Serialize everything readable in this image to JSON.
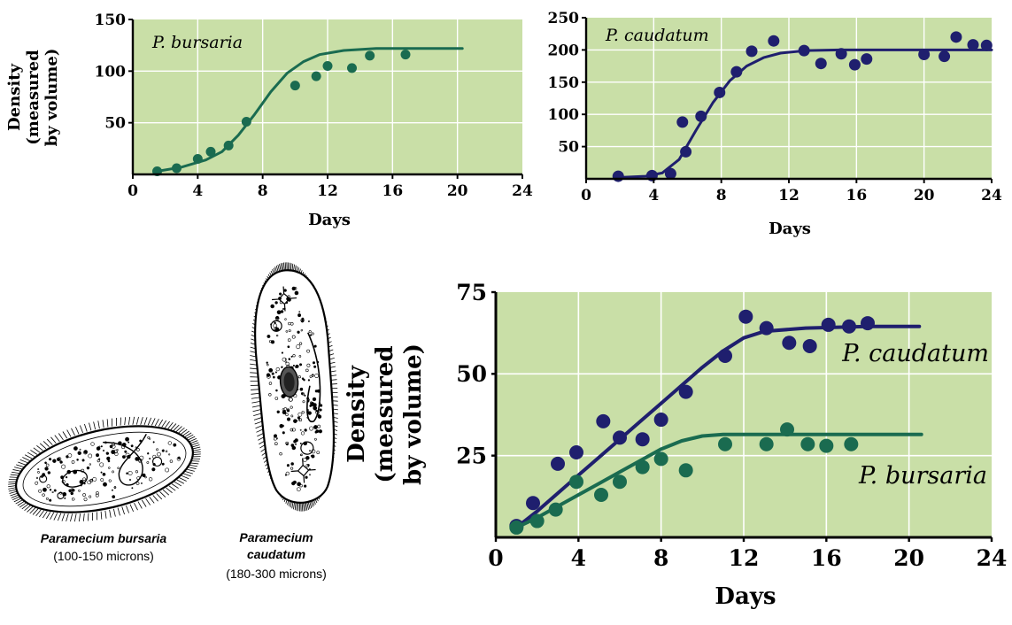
{
  "chart_data": [
    {
      "type": "scatter",
      "series_label": "P. bursaria",
      "xlabel": "Days",
      "ylabel": [
        "Density",
        "(measured",
        "by volume)"
      ],
      "xlim": [
        0,
        24
      ],
      "ylim": [
        0,
        150
      ],
      "xticks": [
        0,
        4,
        8,
        12,
        16,
        20,
        24
      ],
      "yticks": [
        50,
        100,
        150
      ],
      "grid": true,
      "series": [
        {
          "name": "P. bursaria",
          "color": "#1a6b50",
          "points": [
            [
              1.5,
              3
            ],
            [
              2.7,
              6
            ],
            [
              4,
              15
            ],
            [
              4.8,
              22
            ],
            [
              5.9,
              28
            ],
            [
              7,
              51
            ],
            [
              10,
              86
            ],
            [
              11.3,
              95
            ],
            [
              12,
              105
            ],
            [
              13.5,
              103
            ],
            [
              14.6,
              115
            ],
            [
              16.8,
              116
            ]
          ],
          "fit": [
            [
              1.5,
              3
            ],
            [
              3,
              7
            ],
            [
              4.5,
              14
            ],
            [
              5.5,
              22
            ],
            [
              6.5,
              38
            ],
            [
              7.5,
              58
            ],
            [
              8.5,
              80
            ],
            [
              9.5,
              98
            ],
            [
              10.5,
              109
            ],
            [
              11.5,
              116
            ],
            [
              13,
              120
            ],
            [
              15,
              122
            ],
            [
              17,
              122
            ],
            [
              20.3,
              122
            ]
          ]
        }
      ]
    },
    {
      "type": "scatter",
      "series_label": "P. caudatum",
      "xlabel": "Days",
      "ylabel": [],
      "xlim": [
        0,
        24
      ],
      "ylim": [
        0,
        250
      ],
      "xticks": [
        0,
        4,
        8,
        12,
        16,
        20,
        24
      ],
      "yticks": [
        50,
        100,
        150,
        200,
        250
      ],
      "grid": true,
      "series": [
        {
          "name": "P. caudatum",
          "color": "#1f1f6e",
          "points": [
            [
              1.9,
              4
            ],
            [
              3.9,
              5
            ],
            [
              5,
              8
            ],
            [
              5.7,
              88
            ],
            [
              5.9,
              42
            ],
            [
              6.8,
              97
            ],
            [
              7.9,
              134
            ],
            [
              8.9,
              166
            ],
            [
              9.8,
              198
            ],
            [
              11.1,
              214
            ],
            [
              12.9,
              199
            ],
            [
              13.9,
              179
            ],
            [
              15.1,
              194
            ],
            [
              15.9,
              177
            ],
            [
              16.6,
              186
            ],
            [
              20,
              193
            ],
            [
              21.2,
              190
            ],
            [
              21.9,
              220
            ],
            [
              22.9,
              208
            ],
            [
              23.7,
              207
            ]
          ],
          "fit": [
            [
              1.9,
              2
            ],
            [
              3.5,
              4
            ],
            [
              4.5,
              9
            ],
            [
              5.5,
              30
            ],
            [
              6.5,
              75
            ],
            [
              7.5,
              118
            ],
            [
              8.5,
              152
            ],
            [
              9.5,
              175
            ],
            [
              10.5,
              188
            ],
            [
              11.5,
              195
            ],
            [
              13,
              199
            ],
            [
              15,
              200
            ],
            [
              18,
              200
            ],
            [
              21,
              200
            ],
            [
              24,
              200
            ]
          ]
        }
      ]
    },
    {
      "type": "scatter",
      "series_label": "",
      "xlabel": "Days",
      "ylabel": [
        "Density",
        "(measured",
        "by volume)"
      ],
      "xlim": [
        0,
        24
      ],
      "ylim": [
        0,
        75
      ],
      "xticks": [
        0,
        4,
        8,
        12,
        16,
        20,
        24
      ],
      "yticks": [
        25,
        50,
        75
      ],
      "grid": true,
      "series": [
        {
          "name": "P. caudatum",
          "color": "#1f1f6e",
          "points": [
            [
              1,
              3.5
            ],
            [
              1.8,
              10.5
            ],
            [
              3,
              22.5
            ],
            [
              3.9,
              26
            ],
            [
              5.2,
              35.5
            ],
            [
              6,
              30.5
            ],
            [
              7.1,
              30
            ],
            [
              8,
              36
            ],
            [
              9.2,
              44.5
            ],
            [
              11.1,
              55.5
            ],
            [
              12.1,
              67.5
            ],
            [
              13.1,
              64
            ],
            [
              14.2,
              59.5
            ],
            [
              15.2,
              58.5
            ],
            [
              16.1,
              65
            ],
            [
              17.1,
              64.5
            ],
            [
              18,
              65.5
            ]
          ],
          "fit": [
            [
              1,
              3
            ],
            [
              2,
              8
            ],
            [
              3,
              13.5
            ],
            [
              4,
              19
            ],
            [
              5,
              24.5
            ],
            [
              6,
              30
            ],
            [
              7,
              35.5
            ],
            [
              8,
              41
            ],
            [
              9,
              46.5
            ],
            [
              10,
              52
            ],
            [
              11,
              57
            ],
            [
              12,
              61
            ],
            [
              13,
              63
            ],
            [
              15,
              64
            ],
            [
              18,
              64.5
            ],
            [
              20.5,
              64.5
            ]
          ]
        },
        {
          "name": "P. bursaria",
          "color": "#1a6b50",
          "points": [
            [
              1,
              3
            ],
            [
              2,
              5
            ],
            [
              2.9,
              8.5
            ],
            [
              3.9,
              17
            ],
            [
              5.1,
              13
            ],
            [
              6,
              17
            ],
            [
              7.1,
              21.5
            ],
            [
              8,
              24
            ],
            [
              9.2,
              20.5
            ],
            [
              11.1,
              28.5
            ],
            [
              13.1,
              28.5
            ],
            [
              14.1,
              33
            ],
            [
              15.1,
              28.5
            ],
            [
              16,
              28
            ],
            [
              17.2,
              28.5
            ]
          ],
          "fit": [
            [
              1,
              3
            ],
            [
              2,
              6
            ],
            [
              3,
              9.5
            ],
            [
              4,
              13
            ],
            [
              5,
              16.5
            ],
            [
              6,
              20
            ],
            [
              7,
              23.5
            ],
            [
              8,
              27
            ],
            [
              9,
              29.5
            ],
            [
              10,
              31
            ],
            [
              11,
              31.5
            ],
            [
              13,
              31.5
            ],
            [
              16,
              31.5
            ],
            [
              20.6,
              31.5
            ]
          ]
        }
      ],
      "labels": [
        {
          "text": "P. caudatum",
          "x": 24,
          "y": 59
        },
        {
          "text": "P. bursaria",
          "x": 24,
          "y": 19
        }
      ]
    }
  ],
  "illustrations": {
    "bursaria": {
      "name_lines": [
        "Paramecium bursaria"
      ],
      "size": "(100-150 microns)"
    },
    "caudatum": {
      "name_lines": [
        "Paramecium",
        "caudatum"
      ],
      "size": "(180-300 microns)"
    }
  }
}
